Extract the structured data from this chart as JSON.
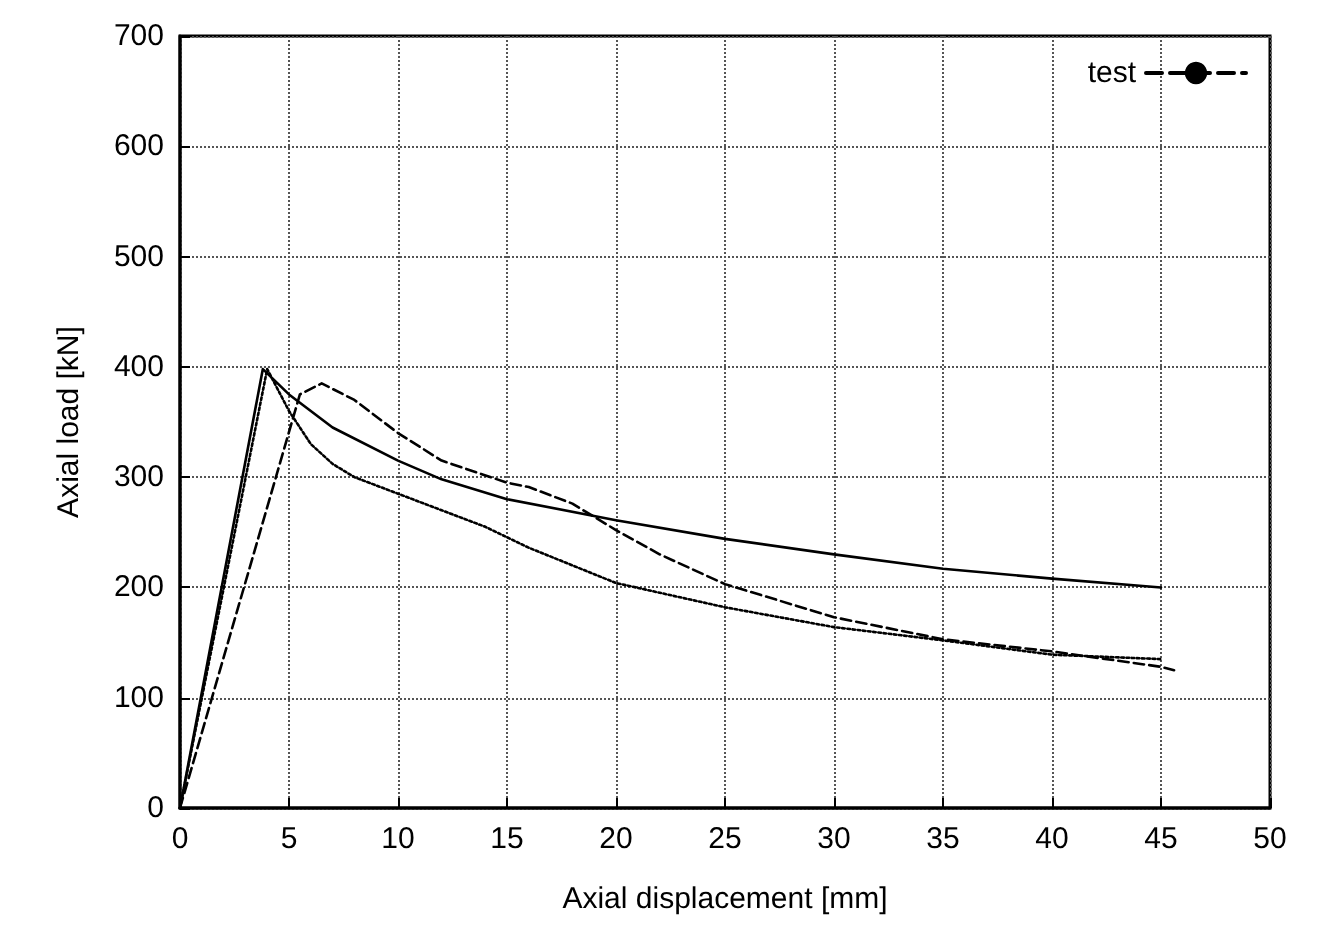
{
  "chart_data": {
    "type": "line",
    "xlabel": "Axial displacement [mm]",
    "ylabel": "Axial load [kN]",
    "xlim": [
      0,
      50
    ],
    "xticks": [
      0,
      5,
      10,
      15,
      20,
      25,
      30,
      35,
      40,
      45,
      50
    ],
    "ylim": [
      0,
      700
    ],
    "yticks": [
      0,
      100,
      200,
      300,
      400,
      500,
      600,
      700
    ],
    "grid": true,
    "legend": "top right",
    "marker": "none",
    "series": [
      {
        "color": "#000000",
        "line_style": "solid",
        "x": [
          0,
          3.8,
          5,
          7,
          10,
          12,
          15,
          20,
          25,
          30,
          35,
          40,
          45
        ],
        "values": [
          0,
          398,
          375,
          345,
          315,
          298,
          280,
          261,
          244,
          230,
          217,
          208,
          200
        ]
      },
      {
        "name": "test",
        "color": "#000000",
        "line_style": "dashed",
        "x": [
          0,
          5.5,
          6.5,
          8,
          10,
          12,
          15,
          16,
          18,
          20,
          22,
          25,
          30,
          35,
          40,
          45,
          45.6
        ],
        "values": [
          0,
          375,
          385,
          370,
          340,
          315,
          295,
          291,
          276,
          252,
          230,
          203,
          173,
          153,
          142,
          128,
          125
        ]
      },
      {
        "color": "#000000",
        "line_style": "dotted",
        "x": [
          0,
          4,
          5,
          6,
          7,
          8,
          10,
          12,
          14,
          16,
          20,
          25,
          30,
          35,
          40,
          45
        ],
        "values": [
          0,
          398,
          360,
          330,
          312,
          300,
          285,
          270,
          255,
          236,
          204,
          182,
          164,
          152,
          139,
          135
        ]
      }
    ]
  }
}
